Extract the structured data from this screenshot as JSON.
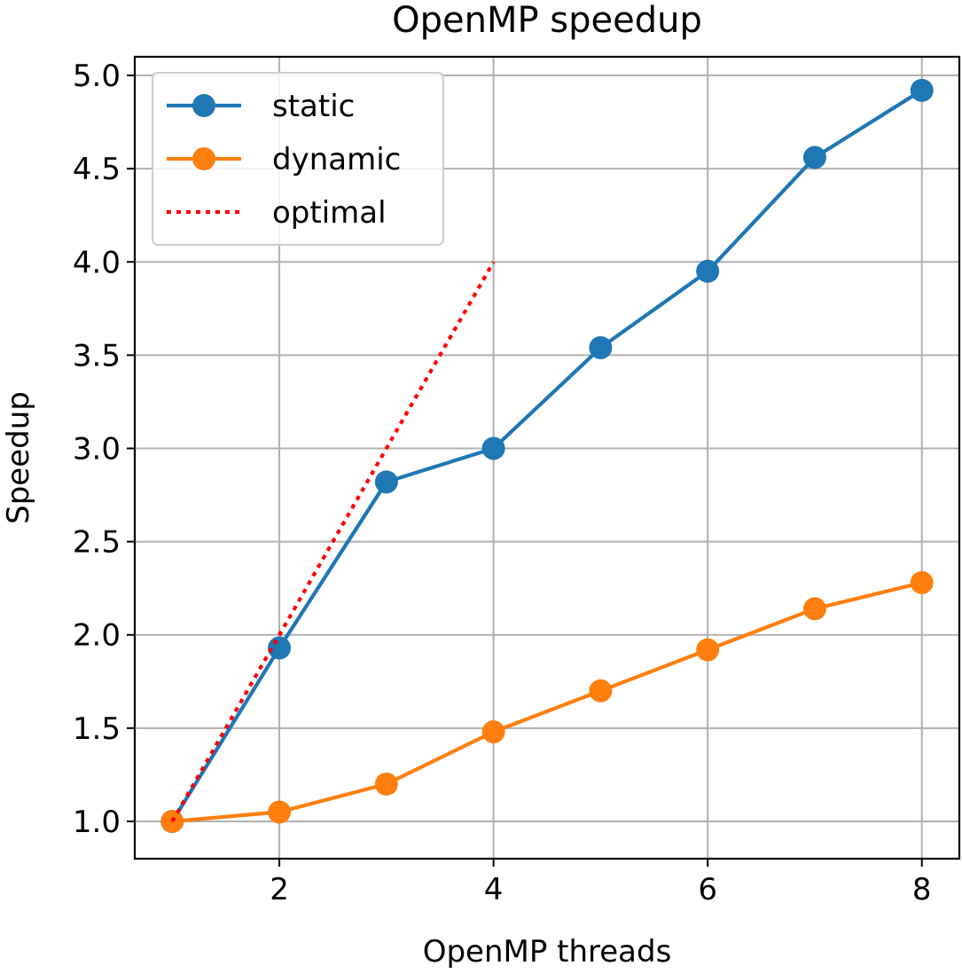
{
  "chart_data": {
    "type": "line",
    "title": "OpenMP speedup",
    "xlabel": "OpenMP threads",
    "ylabel": "Speedup",
    "xlim": [
      0.65,
      8.35
    ],
    "ylim": [
      0.8,
      5.1
    ],
    "x_ticks": [
      2,
      4,
      6,
      8
    ],
    "y_ticks": [
      1.0,
      1.5,
      2.0,
      2.5,
      3.0,
      3.5,
      4.0,
      4.5,
      5.0
    ],
    "grid": true,
    "legend_position": "top-left",
    "series": [
      {
        "name": "static",
        "color": "#1f77b4",
        "style": "solid",
        "marker": "circle",
        "x": [
          1,
          2,
          3,
          4,
          5,
          6,
          7,
          8
        ],
        "y": [
          1.0,
          1.93,
          2.82,
          3.0,
          3.54,
          3.95,
          4.56,
          4.92
        ]
      },
      {
        "name": "dynamic",
        "color": "#ff7f0e",
        "style": "solid",
        "marker": "circle",
        "x": [
          1,
          2,
          3,
          4,
          5,
          6,
          7,
          8
        ],
        "y": [
          1.0,
          1.05,
          1.2,
          1.48,
          1.7,
          1.92,
          2.14,
          2.28
        ]
      },
      {
        "name": "optimal",
        "color": "#ff0000",
        "style": "dotted",
        "marker": "none",
        "x": [
          1,
          2,
          3,
          4
        ],
        "y": [
          1,
          2,
          3,
          4
        ]
      }
    ]
  }
}
